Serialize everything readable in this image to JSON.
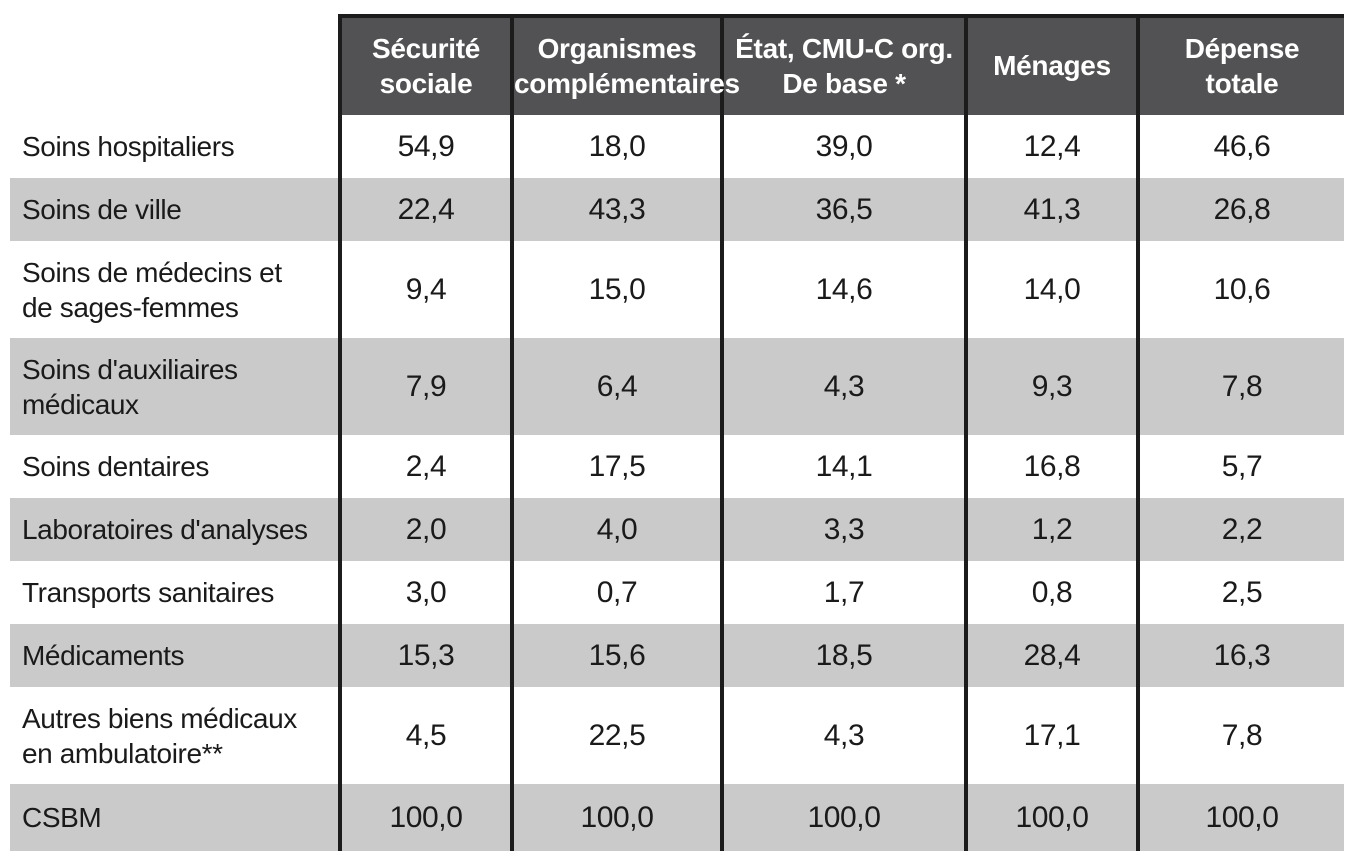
{
  "table": {
    "headers": [
      "Sécurité\nsociale",
      "Organismes\ncomplémentaires",
      "État, CMU-C org.\nDe base *",
      "Ménages",
      "Dépense\ntotale"
    ],
    "rows": [
      {
        "label": "Soins hospitaliers",
        "values": [
          "54,9",
          "18,0",
          "39,0",
          "12,4",
          "46,6"
        ]
      },
      {
        "label": "Soins de ville",
        "values": [
          "22,4",
          "43,3",
          "36,5",
          "41,3",
          "26,8"
        ]
      },
      {
        "label": "Soins de médecins et\nde sages-femmes",
        "values": [
          "9,4",
          "15,0",
          "14,6",
          "14,0",
          "10,6"
        ]
      },
      {
        "label": "Soins d'auxiliaires\nmédicaux",
        "values": [
          "7,9",
          "6,4",
          "4,3",
          "9,3",
          "7,8"
        ]
      },
      {
        "label": "Soins dentaires",
        "values": [
          "2,4",
          "17,5",
          "14,1",
          "16,8",
          "5,7"
        ]
      },
      {
        "label": "Laboratoires d'analyses",
        "values": [
          "2,0",
          "4,0",
          "3,3",
          "1,2",
          "2,2"
        ]
      },
      {
        "label": "Transports sanitaires",
        "values": [
          "3,0",
          "0,7",
          "1,7",
          "0,8",
          "2,5"
        ]
      },
      {
        "label": "Médicaments",
        "values": [
          "15,3",
          "15,6",
          "18,5",
          "28,4",
          "16,3"
        ]
      },
      {
        "label": "Autres biens médicaux\nen ambulatoire**",
        "values": [
          "4,5",
          "22,5",
          "4,3",
          "17,1",
          "7,8"
        ]
      },
      {
        "label": "CSBM",
        "values": [
          "100,0",
          "100,0",
          "100,0",
          "100,0",
          "100,0"
        ]
      }
    ],
    "colors": {
      "header_bg": "#525254",
      "header_text": "#ffffff",
      "stripe_bg": "#cacaca",
      "row_bg": "#ffffff",
      "border": "#1c1c1c",
      "text": "#1a1a1a"
    }
  },
  "chart_data": {
    "type": "table",
    "columns": [
      "Sécurité sociale",
      "Organismes complémentaires",
      "État, CMU-C org. De base *",
      "Ménages",
      "Dépense totale"
    ],
    "decimal_separator": ",",
    "rows": [
      {
        "label": "Soins hospitaliers",
        "values": [
          54.9,
          18.0,
          39.0,
          12.4,
          46.6
        ]
      },
      {
        "label": "Soins de ville",
        "values": [
          22.4,
          43.3,
          36.5,
          41.3,
          26.8
        ]
      },
      {
        "label": "Soins de médecins et de sages-femmes",
        "values": [
          9.4,
          15.0,
          14.6,
          14.0,
          10.6
        ]
      },
      {
        "label": "Soins d'auxiliaires médicaux",
        "values": [
          7.9,
          6.4,
          4.3,
          9.3,
          7.8
        ]
      },
      {
        "label": "Soins dentaires",
        "values": [
          2.4,
          17.5,
          14.1,
          16.8,
          5.7
        ]
      },
      {
        "label": "Laboratoires d'analyses",
        "values": [
          2.0,
          4.0,
          3.3,
          1.2,
          2.2
        ]
      },
      {
        "label": "Transports sanitaires",
        "values": [
          3.0,
          0.7,
          1.7,
          0.8,
          2.5
        ]
      },
      {
        "label": "Médicaments",
        "values": [
          15.3,
          15.6,
          18.5,
          28.4,
          16.3
        ]
      },
      {
        "label": "Autres biens médicaux en ambulatoire**",
        "values": [
          4.5,
          22.5,
          4.3,
          17.1,
          7.8
        ]
      },
      {
        "label": "CSBM",
        "values": [
          100.0,
          100.0,
          100.0,
          100.0,
          100.0
        ]
      }
    ]
  }
}
